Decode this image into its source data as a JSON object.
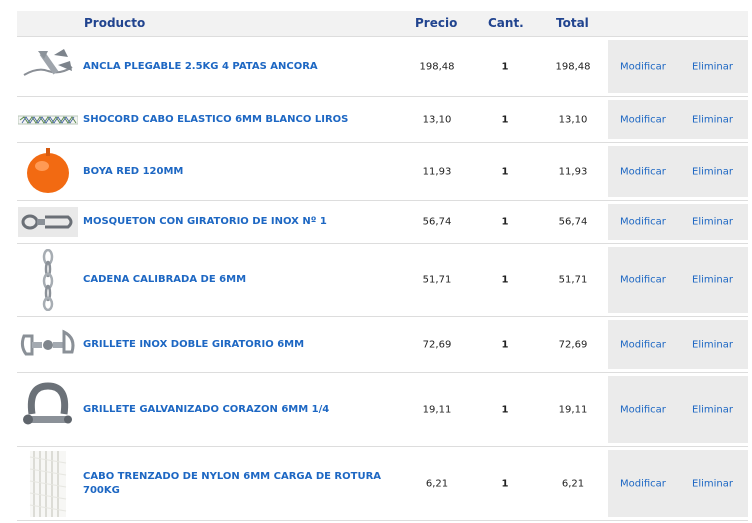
{
  "header": {
    "product": "Producto",
    "price": "Precio",
    "qty": "Cant.",
    "total": "Total"
  },
  "rows": [
    {
      "name": "ANCLA PLEGABLE 2.5KG 4 PATAS ANCORA",
      "price": "198,48",
      "qty": "1",
      "total": "198,48",
      "icon": "anchor-icon"
    },
    {
      "name": "SHOCORD CABO ELASTICO 6MM BLANCO LIROS",
      "price": "13,10",
      "qty": "1",
      "total": "13,10",
      "icon": "rope-icon"
    },
    {
      "name": "BOYA RED 120MM",
      "price": "11,93",
      "qty": "1",
      "total": "11,93",
      "icon": "buoy-icon"
    },
    {
      "name": "MOSQUETON CON GIRATORIO DE INOX Nº 1",
      "price": "56,74",
      "qty": "1",
      "total": "56,74",
      "icon": "snap-hook-icon"
    },
    {
      "name": "CADENA CALIBRADA DE 6MM",
      "price": "51,71",
      "qty": "1",
      "total": "51,71",
      "icon": "chain-icon"
    },
    {
      "name": "GRILLETE INOX DOBLE GIRATORIO 6MM",
      "price": "72,69",
      "qty": "1",
      "total": "72,69",
      "icon": "swivel-shackle-icon"
    },
    {
      "name": "GRILLETE GALVANIZADO CORAZON 6MM 1/4",
      "price": "19,11",
      "qty": "1",
      "total": "19,11",
      "icon": "shackle-icon"
    },
    {
      "name": "CABO TRENZADO DE NYLON 6MM CARGA DE ROTURA 700KG",
      "price": "6,21",
      "qty": "1",
      "total": "6,21",
      "icon": "braided-rope-icon"
    }
  ],
  "actions": {
    "modify": "Modificar",
    "delete": "Eliminar"
  },
  "colors": {
    "link": "#1d67c3",
    "header_text": "#21448f",
    "header_bg": "#f2f2f2",
    "action_bg": "#ebebeb"
  }
}
